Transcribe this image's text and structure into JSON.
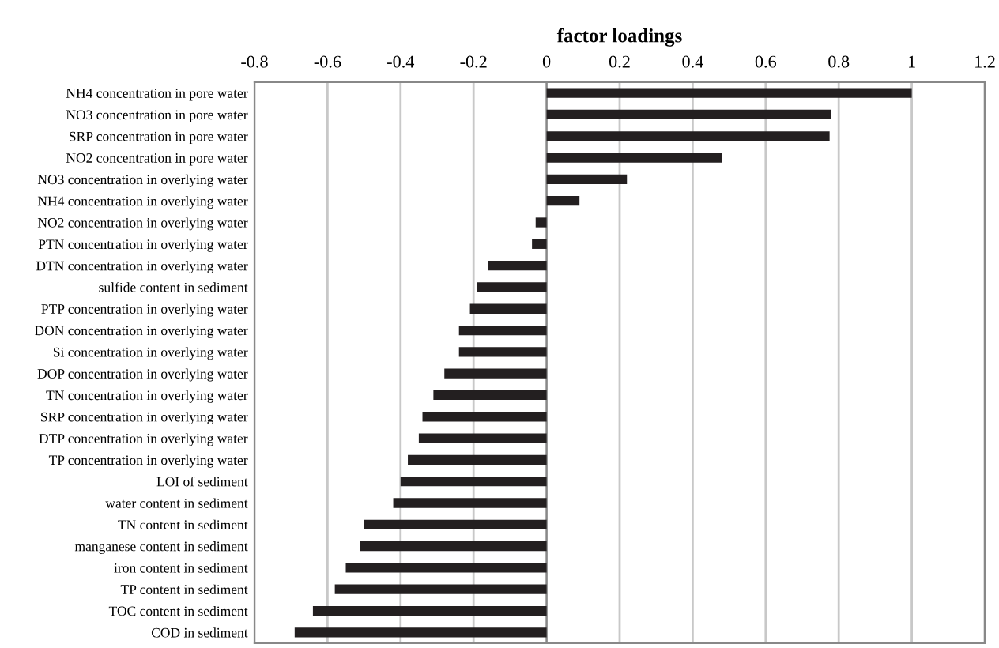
{
  "chart_data": {
    "type": "bar",
    "orientation": "horizontal",
    "xlabel": "factor loadings",
    "categories": [
      "NH4 concentration in pore water",
      "NO3 concentration in pore water",
      "SRP concentration in pore water",
      "NO2 concentration in pore water",
      "NO3 concentration in overlying water",
      "NH4 concentration in overlying water",
      "NO2 concentration in overlying water",
      "PTN concentration in overlying water",
      "DTN concentration in overlying water",
      "sulfide content in sediment",
      "PTP concentration in overlying water",
      "DON concentration in overlying water",
      "Si concentration in overlying water",
      "DOP concentration in overlying water",
      "TN concentration in overlying water",
      "SRP concentration in overlying water",
      "DTP concentration in overlying water",
      "TP concentration in overlying water",
      "LOI of sediment",
      "water content in sediment",
      "TN content in sediment",
      "manganese content in sediment",
      "iron content in sediment",
      "TP content in sediment",
      "TOC content in sediment",
      "COD in sediment"
    ],
    "values": [
      1.0,
      0.78,
      0.775,
      0.48,
      0.22,
      0.09,
      -0.03,
      -0.04,
      -0.16,
      -0.19,
      -0.21,
      -0.24,
      -0.24,
      -0.28,
      -0.31,
      -0.34,
      -0.35,
      -0.38,
      -0.4,
      -0.42,
      -0.5,
      -0.51,
      -0.55,
      -0.58,
      -0.64,
      -0.69
    ],
    "color": "#231f20",
    "xlim": [
      -0.8,
      1.2
    ],
    "xticks": [
      -0.8,
      -0.6,
      -0.4,
      -0.2,
      0,
      0.2,
      0.4,
      0.6,
      0.8,
      1,
      1.2
    ],
    "grid": "x"
  }
}
